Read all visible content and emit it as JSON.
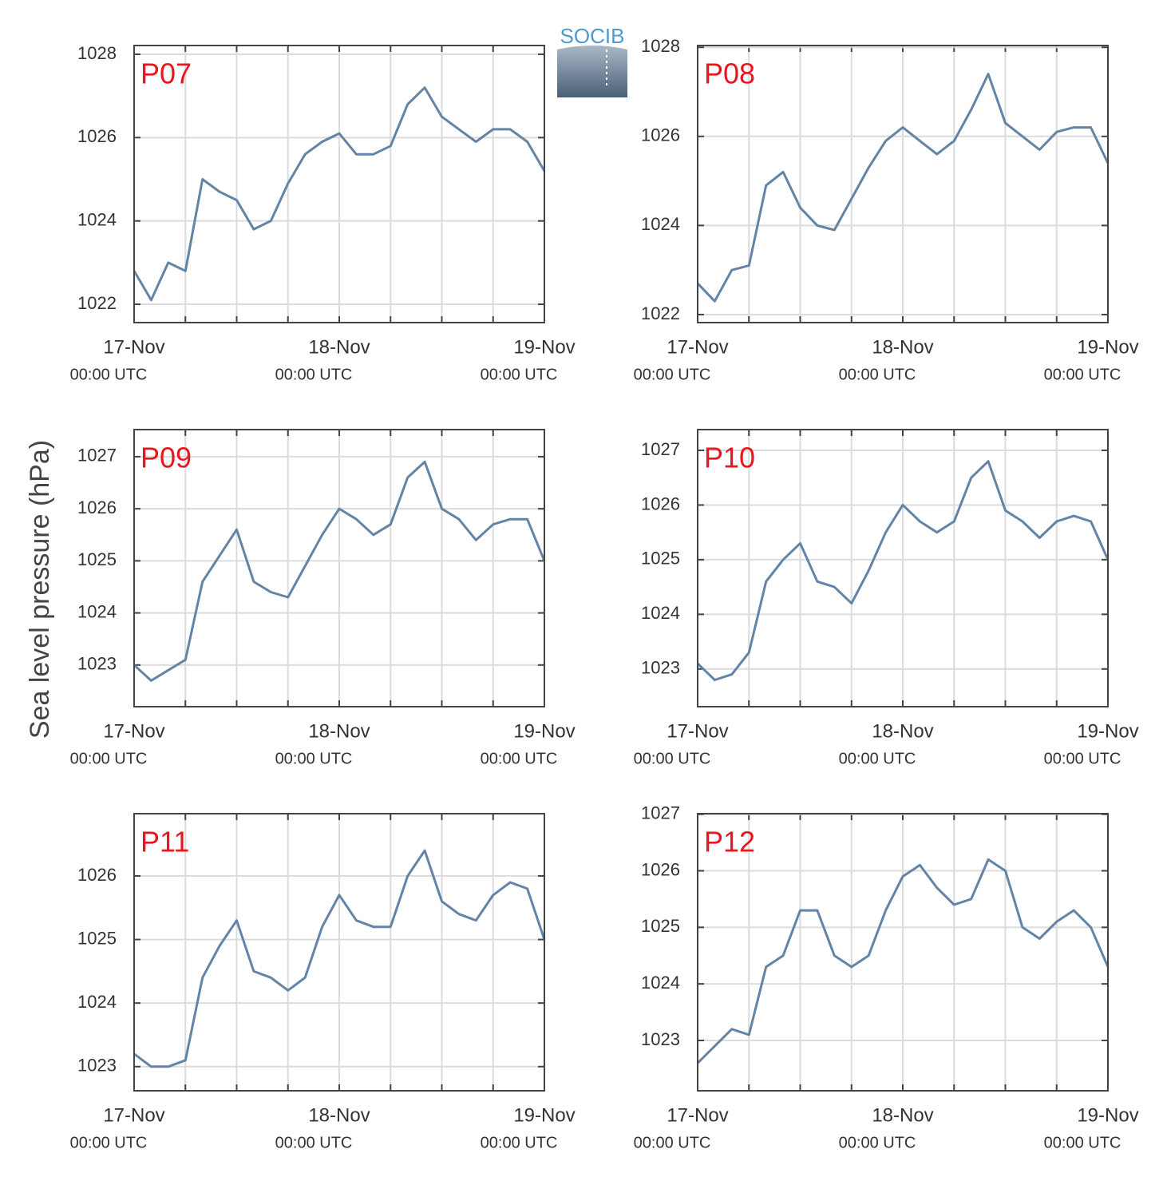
{
  "y_axis_label": "Sea level pressure (hPa)",
  "logo": "SOCIB",
  "chart_data": [
    {
      "type": "line",
      "title": "P07",
      "color": "#6384a6",
      "x": [
        0,
        2,
        4,
        6,
        8,
        10,
        12,
        14,
        16,
        18,
        20,
        22,
        24,
        26,
        28,
        30,
        32,
        34,
        36,
        38,
        40,
        42,
        44,
        46,
        48
      ],
      "values": [
        1022.8,
        1022.1,
        1023.0,
        1022.8,
        1025.0,
        1024.7,
        1024.5,
        1023.8,
        1024.0,
        1024.9,
        1025.6,
        1025.9,
        1026.1,
        1025.6,
        1025.6,
        1025.8,
        1026.8,
        1027.2,
        1026.5,
        1026.2,
        1025.9,
        1026.2,
        1026.2,
        1025.9,
        1025.2
      ],
      "xlim": [
        0,
        48
      ],
      "xticks": [
        {
          "value": 0,
          "label": "17-Nov"
        },
        {
          "value": 24,
          "label": "18-Nov"
        },
        {
          "value": 48,
          "label": "19-Nov"
        }
      ],
      "xtick_sublabels": [
        "00:00 UTC",
        "00:00 UTC",
        "00:00 UTC"
      ],
      "xgrid": [
        6,
        12,
        18,
        30,
        36,
        42
      ],
      "ylim": [
        1021.56,
        1028.21
      ],
      "yticks": [
        1022,
        1024,
        1026,
        1028
      ],
      "grid": true
    },
    {
      "type": "line",
      "title": "P08",
      "color": "#6384a6",
      "x": [
        0,
        2,
        4,
        6,
        8,
        10,
        12,
        14,
        16,
        18,
        20,
        22,
        24,
        26,
        28,
        30,
        32,
        34,
        36,
        38,
        40,
        42,
        44,
        46,
        48
      ],
      "values": [
        1022.7,
        1022.3,
        1023.0,
        1023.1,
        1024.9,
        1025.2,
        1024.4,
        1024.0,
        1023.9,
        1024.6,
        1025.3,
        1025.9,
        1026.2,
        1025.9,
        1025.6,
        1025.9,
        1026.6,
        1027.4,
        1026.3,
        1026.0,
        1025.7,
        1026.1,
        1026.2,
        1026.2,
        1025.4
      ],
      "xlim": [
        0,
        48
      ],
      "xticks": [
        {
          "value": 0,
          "label": "17-Nov"
        },
        {
          "value": 24,
          "label": "18-Nov"
        },
        {
          "value": 48,
          "label": "19-Nov"
        }
      ],
      "xtick_sublabels": [
        "00:00 UTC",
        "00:00 UTC",
        "00:00 UTC"
      ],
      "xgrid": [
        6,
        12,
        18,
        30,
        36,
        42
      ],
      "ylim": [
        1021.82,
        1028.04
      ],
      "yticks": [
        1022,
        1024,
        1026,
        1028
      ],
      "grid": true
    },
    {
      "type": "line",
      "title": "P09",
      "color": "#6384a6",
      "x": [
        0,
        2,
        4,
        6,
        8,
        10,
        12,
        14,
        16,
        18,
        20,
        22,
        24,
        26,
        28,
        30,
        32,
        34,
        36,
        38,
        40,
        42,
        44,
        46,
        48
      ],
      "values": [
        1023.0,
        1022.7,
        1022.9,
        1023.1,
        1024.6,
        1025.1,
        1025.6,
        1024.6,
        1024.4,
        1024.3,
        1024.9,
        1025.5,
        1026.0,
        1025.8,
        1025.5,
        1025.7,
        1026.6,
        1026.9,
        1026.0,
        1025.8,
        1025.4,
        1025.7,
        1025.8,
        1025.8,
        1025.0
      ],
      "xlim": [
        0,
        48
      ],
      "xticks": [
        {
          "value": 0,
          "label": "17-Nov"
        },
        {
          "value": 24,
          "label": "18-Nov"
        },
        {
          "value": 48,
          "label": "19-Nov"
        }
      ],
      "xtick_sublabels": [
        "00:00 UTC",
        "00:00 UTC",
        "00:00 UTC"
      ],
      "xgrid": [
        6,
        12,
        18,
        30,
        36,
        42
      ],
      "ylim": [
        1022.2,
        1027.52
      ],
      "yticks": [
        1023,
        1024,
        1025,
        1026,
        1027
      ],
      "grid": true
    },
    {
      "type": "line",
      "title": "P10",
      "color": "#6384a6",
      "x": [
        0,
        2,
        4,
        6,
        8,
        10,
        12,
        14,
        16,
        18,
        20,
        22,
        24,
        26,
        28,
        30,
        32,
        34,
        36,
        38,
        40,
        42,
        44,
        46,
        48
      ],
      "values": [
        1023.1,
        1022.8,
        1022.9,
        1023.3,
        1024.6,
        1025.0,
        1025.3,
        1024.6,
        1024.5,
        1024.2,
        1024.8,
        1025.5,
        1026.0,
        1025.7,
        1025.5,
        1025.7,
        1026.5,
        1026.8,
        1025.9,
        1025.7,
        1025.4,
        1025.7,
        1025.8,
        1025.7,
        1025.0
      ],
      "xlim": [
        0,
        48
      ],
      "xticks": [
        {
          "value": 0,
          "label": "17-Nov"
        },
        {
          "value": 24,
          "label": "18-Nov"
        },
        {
          "value": 48,
          "label": "19-Nov"
        }
      ],
      "xtick_sublabels": [
        "00:00 UTC",
        "00:00 UTC",
        "00:00 UTC"
      ],
      "xgrid": [
        6,
        12,
        18,
        30,
        36,
        42
      ],
      "ylim": [
        1022.31,
        1027.38
      ],
      "yticks": [
        1023,
        1024,
        1025,
        1026,
        1027
      ],
      "grid": true
    },
    {
      "type": "line",
      "title": "P11",
      "color": "#6384a6",
      "x": [
        0,
        2,
        4,
        6,
        8,
        10,
        12,
        14,
        16,
        18,
        20,
        22,
        24,
        26,
        28,
        30,
        32,
        34,
        36,
        38,
        40,
        42,
        44,
        46,
        48
      ],
      "values": [
        1023.2,
        1023.0,
        1023.0,
        1023.1,
        1024.4,
        1024.9,
        1025.3,
        1024.5,
        1024.4,
        1024.2,
        1024.4,
        1025.2,
        1025.7,
        1025.3,
        1025.2,
        1025.2,
        1026.0,
        1026.4,
        1025.6,
        1025.4,
        1025.3,
        1025.7,
        1025.9,
        1025.8,
        1025.0
      ],
      "xlim": [
        0,
        48
      ],
      "xticks": [
        {
          "value": 0,
          "label": "17-Nov"
        },
        {
          "value": 24,
          "label": "18-Nov"
        },
        {
          "value": 48,
          "label": "19-Nov"
        }
      ],
      "xtick_sublabels": [
        "00:00 UTC",
        "00:00 UTC",
        "00:00 UTC"
      ],
      "xgrid": [
        6,
        12,
        18,
        30,
        36,
        42
      ],
      "ylim": [
        1022.62,
        1026.98
      ],
      "yticks": [
        1023,
        1024,
        1025,
        1026
      ],
      "grid": true
    },
    {
      "type": "line",
      "title": "P12",
      "color": "#6384a6",
      "x": [
        0,
        2,
        4,
        6,
        8,
        10,
        12,
        14,
        16,
        18,
        20,
        22,
        24,
        26,
        28,
        30,
        32,
        34,
        36,
        38,
        40,
        42,
        44,
        46,
        48
      ],
      "values": [
        1022.6,
        1022.9,
        1023.2,
        1023.1,
        1024.3,
        1024.5,
        1025.3,
        1025.3,
        1024.5,
        1024.3,
        1024.5,
        1025.3,
        1025.9,
        1026.1,
        1025.7,
        1025.4,
        1025.5,
        1026.2,
        1026.0,
        1025.0,
        1024.8,
        1025.1,
        1025.3,
        1025.0,
        1024.3
      ],
      "xlim": [
        0,
        48
      ],
      "xticks": [
        {
          "value": 0,
          "label": "17-Nov"
        },
        {
          "value": 24,
          "label": "18-Nov"
        },
        {
          "value": 48,
          "label": "19-Nov"
        }
      ],
      "xtick_sublabels": [
        "00:00 UTC",
        "00:00 UTC",
        "00:00 UTC"
      ],
      "xgrid": [
        6,
        12,
        18,
        30,
        36,
        42
      ],
      "ylim": [
        1022.11,
        1027.01
      ],
      "yticks": [
        1023,
        1024,
        1025,
        1026,
        1027
      ],
      "grid": true
    }
  ]
}
